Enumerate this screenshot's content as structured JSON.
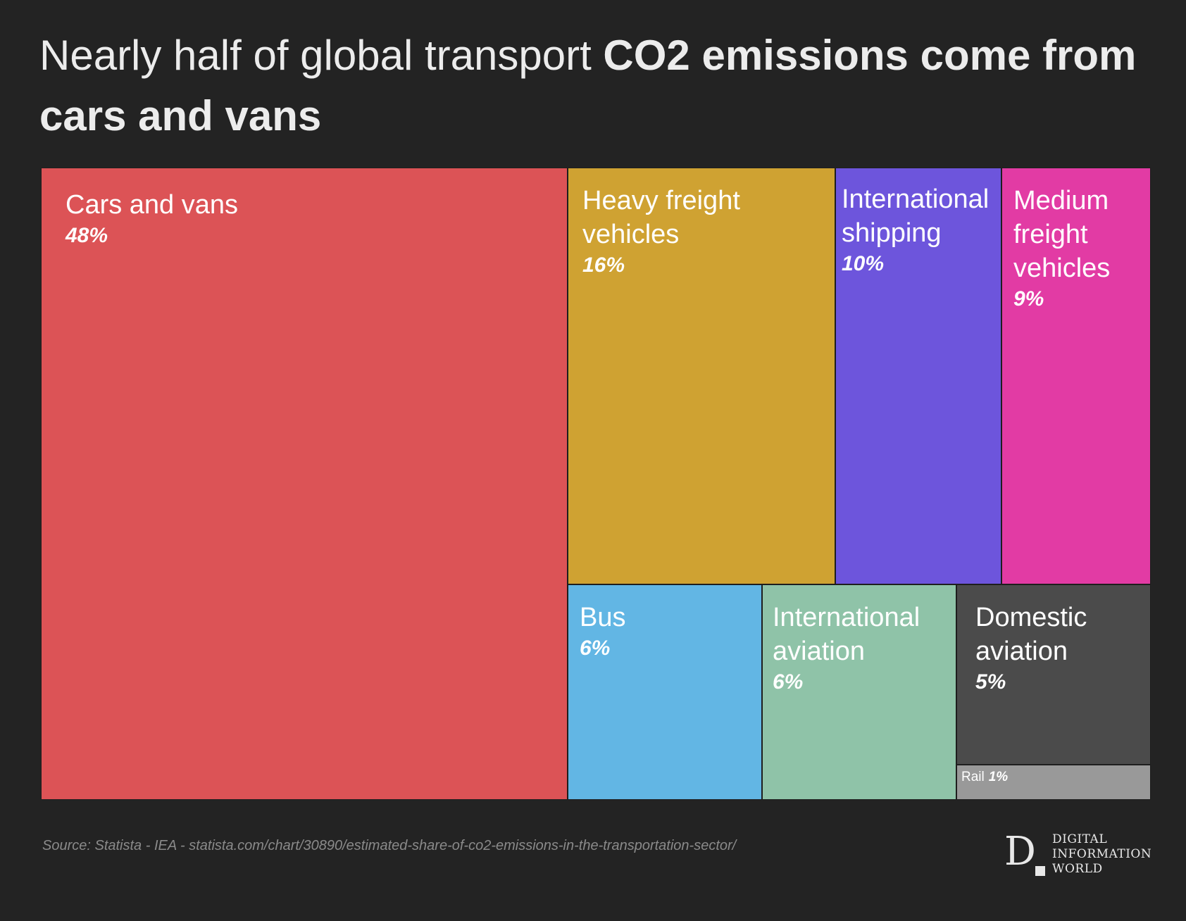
{
  "title": {
    "normal": "Nearly half of global transport ",
    "bold": "CO2 emissions come from cars and vans"
  },
  "chart_data": {
    "type": "treemap",
    "title": "Nearly half of global transport CO2 emissions come from cars and vans",
    "unit": "%",
    "items": [
      {
        "key": "cars",
        "label": "Cars and vans",
        "value": 48,
        "value_label": "48%",
        "color": "#dc5356"
      },
      {
        "key": "heavy",
        "label": "Heavy freight vehicles",
        "value": 16,
        "value_label": "16%",
        "color": "#cfa232"
      },
      {
        "key": "intl-shipping",
        "label": "International shipping",
        "value": 10,
        "value_label": "10%",
        "color": "#6d55dc"
      },
      {
        "key": "medium",
        "label": "Medium freight vehicles",
        "value": 9,
        "value_label": "9%",
        "color": "#e23ba4"
      },
      {
        "key": "bus",
        "label": "Bus",
        "value": 6,
        "value_label": "6%",
        "color": "#62b6e4"
      },
      {
        "key": "intl-aviation",
        "label": "International aviation",
        "value": 6,
        "value_label": "6%",
        "color": "#8fc3a8"
      },
      {
        "key": "domestic",
        "label": "Domestic aviation",
        "value": 5,
        "value_label": "5%",
        "color": "#4b4b4b"
      },
      {
        "key": "rail",
        "label": "Rail",
        "value": 1,
        "value_label": "1%",
        "color": "#999999"
      }
    ]
  },
  "source": "Source: Statista - IEA - statista.com/chart/30890/estimated-share-of-co2-emissions-in-the-transportation-sector/",
  "logo": {
    "mark": "D",
    "line1": "DIGITAL",
    "line2": "INFORMATION",
    "line3": "WORLD"
  }
}
